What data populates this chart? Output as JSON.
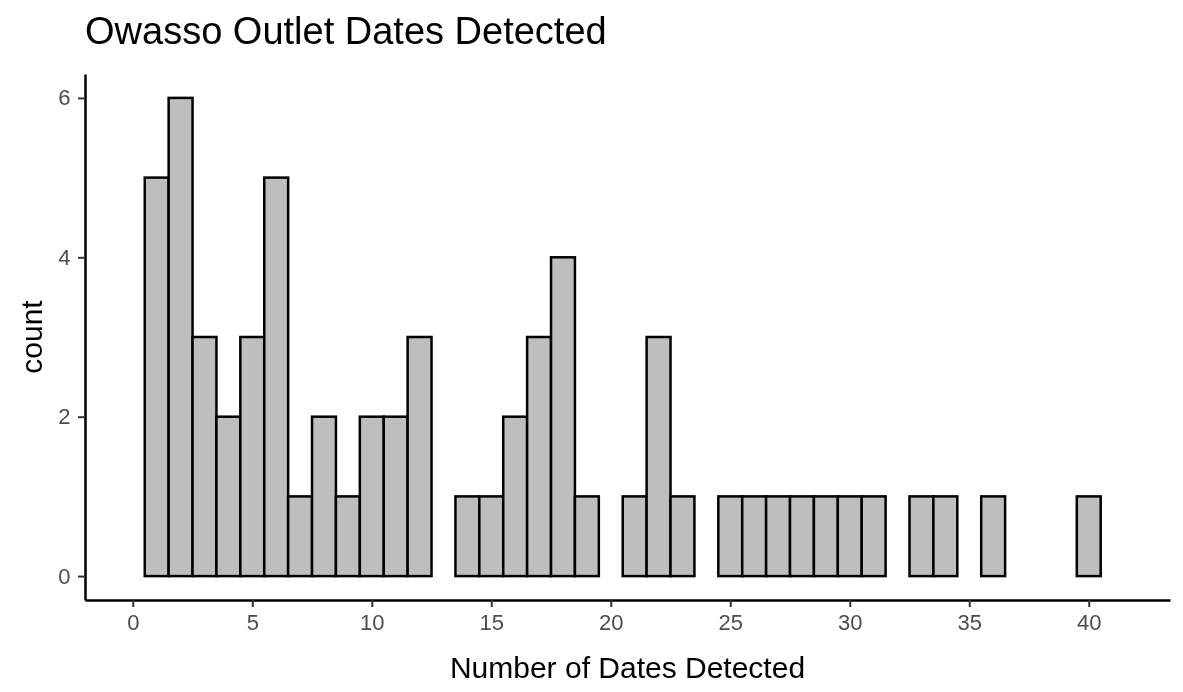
{
  "chart_data": {
    "type": "histogram",
    "title": "Owasso Outlet Dates Detected",
    "xlabel": "Number of Dates Detected",
    "ylabel": "count",
    "bins": [
      0.5,
      1.5,
      2.5,
      3.5,
      4.5,
      5.5,
      6.5,
      7.5,
      8.5,
      9.5,
      10.5,
      11.5,
      12.5,
      13.5,
      14.5,
      15.5,
      16.5,
      17.5,
      18.5,
      19.5,
      20.5,
      21.5,
      22.5,
      23.5,
      24.5,
      25.5,
      26.5,
      27.5,
      28.5,
      29.5,
      30.5,
      31.5,
      32.5,
      33.5,
      34.5,
      35.5,
      36.5,
      37.5,
      38.5,
      39.5,
      40.5,
      41.5
    ],
    "values": [
      5,
      6,
      3,
      2,
      3,
      5,
      1,
      2,
      1,
      2,
      2,
      3,
      0,
      1,
      1,
      2,
      3,
      4,
      1,
      0,
      1,
      3,
      1,
      0,
      1,
      1,
      1,
      1,
      1,
      1,
      1,
      0,
      1,
      1,
      0,
      1,
      0,
      0,
      0,
      1,
      0
    ],
    "color": "#bebebe",
    "xlim": [
      -2,
      43.4
    ],
    "xticks": [
      0,
      5,
      10,
      15,
      20,
      25,
      30,
      35,
      40
    ],
    "ylim": [
      -0.3,
      6.3
    ],
    "yticks": [
      0,
      2,
      4,
      6
    ],
    "grid": false
  }
}
